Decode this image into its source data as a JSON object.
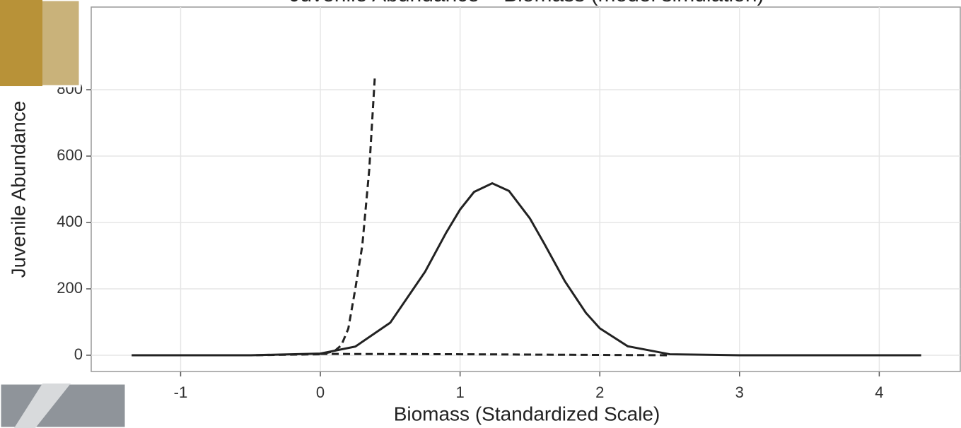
{
  "chart_data": {
    "type": "line",
    "title": "Juvenile Abundance ~ Biomass (model simulation)",
    "x_label": "Biomass (Standardized Scale)",
    "y_label": "Juvenile Abundance",
    "xlim": [
      -1.64,
      4.58
    ],
    "ylim": [
      -49,
      1049
    ],
    "xticks": [
      -1,
      0,
      1,
      2,
      3,
      4
    ],
    "yticks": [
      0,
      200,
      400,
      600,
      800
    ],
    "grid": true,
    "series": [
      {
        "color": "#222222",
        "dash": false,
        "x": [
          -1.35,
          -1,
          -0.5,
          0,
          0.25,
          0.5,
          0.75,
          0.9,
          1.0,
          1.1,
          1.23,
          1.35,
          1.5,
          1.6,
          1.75,
          1.9,
          2.0,
          2.2,
          2.5,
          3,
          3.5,
          4,
          4.3
        ],
        "values": [
          0,
          0,
          0,
          5,
          26,
          98,
          252,
          369,
          439,
          492,
          518,
          495,
          412,
          338,
          223,
          128,
          81,
          27,
          3,
          0,
          0,
          0,
          0
        ]
      },
      {
        "color": "#222222",
        "dash": true,
        "x": [
          -1.35,
          -0.5,
          0,
          0.1,
          0.15,
          0.2,
          0.25,
          0.3,
          0.35,
          0.39
        ],
        "values": [
          0,
          0,
          3,
          12,
          30,
          80,
          200,
          330,
          560,
          840
        ]
      },
      {
        "color": "#222222",
        "dash": true,
        "x": [
          0,
          1,
          2,
          2.5
        ],
        "values": [
          4,
          3,
          1,
          0
        ]
      }
    ]
  }
}
